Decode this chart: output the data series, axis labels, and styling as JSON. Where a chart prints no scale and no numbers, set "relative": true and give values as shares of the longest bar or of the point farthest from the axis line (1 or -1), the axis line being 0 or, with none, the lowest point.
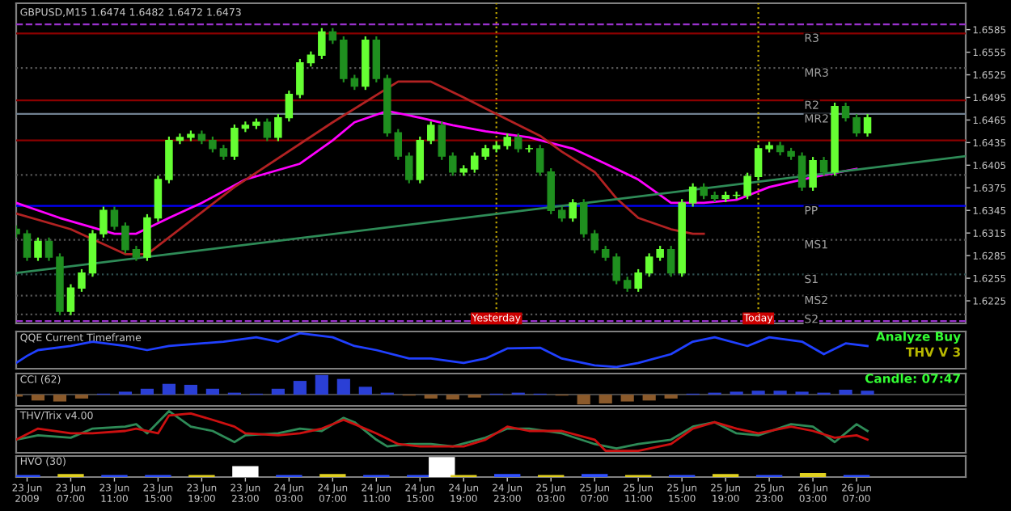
{
  "chart_data": [
    {
      "type": "candlestick",
      "title": "GBPUSD,M15 1.6474 1.6482 1.6472 1.6473",
      "colors": [
        "#1f8f1f",
        "#1f8f1f",
        "#66ff33",
        "#1f8f1f",
        "#1f8f1f",
        "#66ff33",
        "#66ff33",
        "#66ff33",
        "#66ff33",
        "#1f8f1f",
        "#1f8f1f",
        "#1f8f1f",
        "#66ff33",
        "#66ff33",
        "#66ff33",
        "#66ff33",
        "#66ff33",
        "#1f8f1f",
        "#1f8f1f",
        "#1f8f1f",
        "#66ff33",
        "#66ff33",
        "#66ff33",
        "#1f8f1f",
        "#66ff33",
        "#66ff33",
        "#66ff33",
        "#66ff33",
        "#66ff33",
        "#1f8f1f",
        "#1f8f1f",
        "#1f8f1f",
        "#66ff33",
        "#1f8f1f",
        "#1f8f1f",
        "#1f8f1f",
        "#1f8f1f",
        "#66ff33",
        "#66ff33",
        "#1f8f1f",
        "#1f8f1f",
        "#66ff33",
        "#66ff33",
        "#66ff33",
        "#66ff33",
        "#66ff33",
        "#1f8f1f",
        "#66ff33",
        "#1f8f1f",
        "#1f8f1f",
        "#1f8f1f",
        "#66ff33",
        "#1f8f1f",
        "#1f8f1f",
        "#1f8f1f",
        "#1f8f1f",
        "#1f8f1f",
        "#66ff33",
        "#66ff33",
        "#66ff33",
        "#1f8f1f",
        "#66ff33",
        "#66ff33",
        "#1f8f1f",
        "#1f8f1f",
        "#66ff33",
        "#66ff33",
        "#66ff33",
        "#66ff33",
        "#66ff33",
        "#1f8f1f",
        "#1f8f1f",
        "#1f8f1f",
        "#66ff33",
        "#1f8f1f",
        "#66ff33",
        "#1f8f1f",
        "#1f8f1f",
        "#66ff33"
      ],
      "x": [
        "2009-06-23T02:00",
        "2009-06-23T03:00",
        "2009-06-23T04:00",
        "2009-06-23T05:00",
        "2009-06-23T06:00",
        "2009-06-23T07:00",
        "2009-06-23T08:00",
        "2009-06-23T09:00",
        "2009-06-23T10:00",
        "2009-06-23T11:00",
        "2009-06-23T12:00",
        "2009-06-23T13:00",
        "2009-06-23T14:00",
        "2009-06-23T15:00",
        "2009-06-23T16:00",
        "2009-06-23T17:00",
        "2009-06-23T18:00",
        "2009-06-23T19:00",
        "2009-06-23T20:00",
        "2009-06-23T21:00",
        "2009-06-23T22:00",
        "2009-06-23T23:00",
        "2009-06-24T00:00",
        "2009-06-24T01:00",
        "2009-06-24T02:00",
        "2009-06-24T03:00",
        "2009-06-24T04:00",
        "2009-06-24T05:00",
        "2009-06-24T06:00",
        "2009-06-24T07:00",
        "2009-06-24T08:00",
        "2009-06-24T09:00",
        "2009-06-24T10:00",
        "2009-06-24T11:00",
        "2009-06-24T12:00",
        "2009-06-24T13:00",
        "2009-06-24T14:00",
        "2009-06-24T15:00",
        "2009-06-24T16:00",
        "2009-06-24T17:00",
        "2009-06-24T18:00",
        "2009-06-24T19:00",
        "2009-06-24T20:00",
        "2009-06-24T21:00",
        "2009-06-24T22:00",
        "2009-06-24T23:00",
        "2009-06-25T00:00",
        "2009-06-25T01:00",
        "2009-06-25T02:00",
        "2009-06-25T03:00",
        "2009-06-25T04:00",
        "2009-06-25T05:00",
        "2009-06-25T06:00",
        "2009-06-25T07:00",
        "2009-06-25T08:00",
        "2009-06-25T09:00",
        "2009-06-25T10:00",
        "2009-06-25T11:00",
        "2009-06-25T12:00",
        "2009-06-25T13:00",
        "2009-06-25T14:00",
        "2009-06-25T15:00",
        "2009-06-25T16:00",
        "2009-06-25T17:00",
        "2009-06-25T18:00",
        "2009-06-25T19:00",
        "2009-06-25T20:00",
        "2009-06-25T21:00",
        "2009-06-25T22:00",
        "2009-06-25T23:00",
        "2009-06-26T00:00",
        "2009-06-26T01:00",
        "2009-06-26T02:00",
        "2009-06-26T03:00",
        "2009-06-26T04:00",
        "2009-06-26T05:00",
        "2009-06-26T06:00",
        "2009-06-26T07:00",
        "2009-06-26T08:00"
      ],
      "ohlc": [
        [
          1.632,
          1.6325,
          1.6309,
          1.6314
        ],
        [
          1.6314,
          1.6319,
          1.6278,
          1.6283
        ],
        [
          1.6283,
          1.6309,
          1.6278,
          1.6304
        ],
        [
          1.6304,
          1.6309,
          1.6278,
          1.6283
        ],
        [
          1.6283,
          1.6288,
          1.6206,
          1.6211
        ],
        [
          1.6211,
          1.6247,
          1.6206,
          1.6242
        ],
        [
          1.6242,
          1.6267,
          1.6237,
          1.6262
        ],
        [
          1.6262,
          1.6319,
          1.6257,
          1.6314
        ],
        [
          1.6314,
          1.635,
          1.6309,
          1.6345
        ],
        [
          1.6345,
          1.635,
          1.6319,
          1.6324
        ],
        [
          1.6324,
          1.6329,
          1.6288,
          1.6293
        ],
        [
          1.6293,
          1.6298,
          1.6278,
          1.6283
        ],
        [
          1.6283,
          1.634,
          1.6278,
          1.6335
        ],
        [
          1.6335,
          1.6391,
          1.633,
          1.6386
        ],
        [
          1.6386,
          1.6443,
          1.6381,
          1.6438
        ],
        [
          1.6438,
          1.6447,
          1.6433,
          1.6442
        ],
        [
          1.6442,
          1.6451,
          1.6437,
          1.6446
        ],
        [
          1.6446,
          1.6451,
          1.6433,
          1.6438
        ],
        [
          1.6438,
          1.6443,
          1.6422,
          1.6427
        ],
        [
          1.6427,
          1.6432,
          1.6412,
          1.6417
        ],
        [
          1.6417,
          1.6459,
          1.6412,
          1.6454
        ],
        [
          1.6454,
          1.6463,
          1.6449,
          1.6458
        ],
        [
          1.6458,
          1.6467,
          1.6453,
          1.6462
        ],
        [
          1.6462,
          1.6467,
          1.6437,
          1.6442
        ],
        [
          1.6442,
          1.6473,
          1.6437,
          1.6468
        ],
        [
          1.6468,
          1.6504,
          1.6463,
          1.6499
        ],
        [
          1.6499,
          1.6546,
          1.6494,
          1.6541
        ],
        [
          1.6541,
          1.6556,
          1.6536,
          1.6551
        ],
        [
          1.6551,
          1.6587,
          1.6546,
          1.6582
        ],
        [
          1.6582,
          1.6587,
          1.6566,
          1.6571
        ],
        [
          1.6571,
          1.6576,
          1.6515,
          1.652
        ],
        [
          1.652,
          1.6525,
          1.6505,
          1.651
        ],
        [
          1.651,
          1.6576,
          1.6505,
          1.6571
        ],
        [
          1.6571,
          1.6576,
          1.6515,
          1.652
        ],
        [
          1.652,
          1.6525,
          1.6443,
          1.6448
        ],
        [
          1.6448,
          1.6453,
          1.6412,
          1.6417
        ],
        [
          1.6417,
          1.6422,
          1.6381,
          1.6386
        ],
        [
          1.6386,
          1.6443,
          1.6381,
          1.6438
        ],
        [
          1.6438,
          1.6463,
          1.6433,
          1.6458
        ],
        [
          1.6458,
          1.6463,
          1.6412,
          1.6417
        ],
        [
          1.6417,
          1.6422,
          1.6391,
          1.6396
        ],
        [
          1.6396,
          1.6405,
          1.6391,
          1.64
        ],
        [
          1.64,
          1.6422,
          1.6395,
          1.6417
        ],
        [
          1.6417,
          1.6432,
          1.6412,
          1.6427
        ],
        [
          1.6427,
          1.6436,
          1.6422,
          1.6431
        ],
        [
          1.6431,
          1.6447,
          1.6426,
          1.6442
        ],
        [
          1.6442,
          1.6447,
          1.6422,
          1.6427
        ],
        [
          1.6427,
          1.6432,
          1.6422,
          1.6427
        ],
        [
          1.6427,
          1.6432,
          1.6391,
          1.6396
        ],
        [
          1.6396,
          1.6401,
          1.634,
          1.6345
        ],
        [
          1.6345,
          1.635,
          1.633,
          1.6335
        ],
        [
          1.6335,
          1.636,
          1.633,
          1.6355
        ],
        [
          1.6355,
          1.636,
          1.6309,
          1.6314
        ],
        [
          1.6314,
          1.6319,
          1.6288,
          1.6293
        ],
        [
          1.6293,
          1.6298,
          1.6278,
          1.6283
        ],
        [
          1.6283,
          1.6288,
          1.6247,
          1.6252
        ],
        [
          1.6252,
          1.6257,
          1.6237,
          1.6242
        ],
        [
          1.6242,
          1.6267,
          1.6237,
          1.6262
        ],
        [
          1.6262,
          1.6288,
          1.6257,
          1.6283
        ],
        [
          1.6283,
          1.6298,
          1.6278,
          1.6293
        ],
        [
          1.6293,
          1.6298,
          1.6257,
          1.6262
        ],
        [
          1.6262,
          1.636,
          1.6257,
          1.6355
        ],
        [
          1.6355,
          1.6381,
          1.635,
          1.6376
        ],
        [
          1.6376,
          1.6381,
          1.636,
          1.6365
        ],
        [
          1.6365,
          1.637,
          1.6356,
          1.6361
        ],
        [
          1.6361,
          1.637,
          1.6356,
          1.6365
        ],
        [
          1.6365,
          1.637,
          1.636,
          1.6365
        ],
        [
          1.6365,
          1.6395,
          1.636,
          1.639
        ],
        [
          1.639,
          1.6432,
          1.6385,
          1.6427
        ],
        [
          1.6427,
          1.6436,
          1.6422,
          1.6431
        ],
        [
          1.6431,
          1.6436,
          1.6418,
          1.6423
        ],
        [
          1.6423,
          1.6428,
          1.6412,
          1.6417
        ],
        [
          1.6417,
          1.6422,
          1.6371,
          1.6376
        ],
        [
          1.6376,
          1.6416,
          1.6371,
          1.6411
        ],
        [
          1.6411,
          1.6416,
          1.6391,
          1.6396
        ],
        [
          1.6396,
          1.6488,
          1.6391,
          1.6483
        ],
        [
          1.6483,
          1.6488,
          1.6463,
          1.6468
        ],
        [
          1.6468,
          1.6473,
          1.6443,
          1.6448
        ],
        [
          1.6448,
          1.6473,
          1.6443,
          1.6468
        ]
      ],
      "series": [
        {
          "type": "line",
          "color": "#ff00ff",
          "x": [
            "2009-06-23T02:00",
            "2009-06-23T06:00",
            "2009-06-23T11:00",
            "2009-06-23T13:00",
            "2009-06-23T16:00",
            "2009-06-23T19:00",
            "2009-06-23T23:00",
            "2009-06-24T04:00",
            "2009-06-24T07:00",
            "2009-06-24T09:00",
            "2009-06-24T12:00",
            "2009-06-24T15:00",
            "2009-06-24T18:00",
            "2009-06-24T21:00",
            "2009-06-25T01:00",
            "2009-06-25T05:00",
            "2009-06-25T08:00",
            "2009-06-25T11:00",
            "2009-06-25T14:00",
            "2009-06-25T17:00",
            "2009-06-25T20:00",
            "2009-06-25T23:00",
            "2009-06-26T02:00",
            "2009-06-26T04:00",
            "2009-06-26T07:00"
          ],
          "values": [
            1.6355,
            1.6335,
            1.6314,
            1.6314,
            1.6335,
            1.6355,
            1.6386,
            1.6407,
            1.6438,
            1.6462,
            1.6477,
            1.6468,
            1.6458,
            1.645,
            1.6442,
            1.6427,
            1.6407,
            1.6386,
            1.6355,
            1.6355,
            1.6359,
            1.6376,
            1.6386,
            1.6392,
            1.64
          ]
        },
        {
          "type": "line",
          "color": "#b22222",
          "x": [
            "2009-06-23T02:00",
            "2009-06-23T07:00",
            "2009-06-23T12:00",
            "2009-06-23T14:00",
            "2009-06-23T22:00",
            "2009-06-24T07:00",
            "2009-06-24T13:00",
            "2009-06-24T16:00",
            "2009-06-24T19:00",
            "2009-06-24T22:00",
            "2009-06-25T02:00",
            "2009-06-25T04:00",
            "2009-06-25T07:00",
            "2009-06-25T09:00",
            "2009-06-25T11:00",
            "2009-06-25T14:00",
            "2009-06-25T16:00",
            "2009-06-25T17:00"
          ],
          "values": [
            1.6341,
            1.632,
            1.6287,
            1.6287,
            1.6376,
            1.6462,
            1.6516,
            1.6516,
            1.6495,
            1.6473,
            1.6444,
            1.6423,
            1.6396,
            1.6361,
            1.6335,
            1.632,
            1.6314,
            1.6314
          ]
        },
        {
          "type": "line",
          "color": "#2e8b57",
          "x": [
            "2009-06-23T02:00",
            "2009-06-26T17:00"
          ],
          "values": [
            1.6262,
            1.6417
          ]
        }
      ],
      "ref_lines": [
        {
          "axis": "y",
          "value": 1.6592,
          "label": null,
          "color": "#9932cc",
          "line_style": "dashed"
        },
        {
          "axis": "y",
          "value": 1.658,
          "label": "R3",
          "color": "#8b0000",
          "line_style": "solid"
        },
        {
          "axis": "y",
          "value": 1.6534,
          "label": "MR3",
          "color": "#555555",
          "line_style": "dotted"
        },
        {
          "axis": "y",
          "value": 1.6491,
          "label": "R2",
          "color": "#8b0000",
          "line_style": "solid"
        },
        {
          "axis": "y",
          "value": 1.6473,
          "label": "MR2",
          "color": "#708090",
          "line_style": "solid"
        },
        {
          "axis": "y",
          "value": 1.6438,
          "label": null,
          "color": "#8b0000",
          "line_style": "solid"
        },
        {
          "axis": "y",
          "value": 1.6392,
          "label": null,
          "color": "#555555",
          "line_style": "dotted"
        },
        {
          "axis": "y",
          "value": 1.6351,
          "label": "PP",
          "color": "#0000ff",
          "line_style": "solid"
        },
        {
          "axis": "y",
          "value": 1.6306,
          "label": "MS1",
          "color": "#555555",
          "line_style": "dotted"
        },
        {
          "axis": "y",
          "value": 1.626,
          "label": "S1",
          "color": "#2f4f4f",
          "line_style": "dotted"
        },
        {
          "axis": "y",
          "value": 1.6232,
          "label": "MS2",
          "color": "#555555",
          "line_style": "dotted"
        },
        {
          "axis": "y",
          "value": 1.6207,
          "label": "S2",
          "color": "#555555",
          "line_style": "dotted"
        },
        {
          "axis": "y",
          "value": 1.6198,
          "label": null,
          "color": "#9932cc",
          "line_style": "dashed"
        },
        {
          "axis": "x",
          "value": "2009-06-24T22:00",
          "label": "Yesterday",
          "color": "#b8a000",
          "line_style": "dotted"
        },
        {
          "axis": "x",
          "value": "2009-06-25T22:00",
          "label": "Today",
          "color": "#b8a000",
          "line_style": "dotted"
        }
      ],
      "xlim": [
        "2009-06-23T02:00",
        "2009-06-26T17:00"
      ],
      "ylim": [
        1.6195,
        1.662
      ],
      "yticks": [
        1.6225,
        1.6255,
        1.6285,
        1.6315,
        1.6345,
        1.6375,
        1.6405,
        1.6435,
        1.6465,
        1.6495,
        1.6525,
        1.6555,
        1.6585
      ],
      "tick_labels": "y",
      "grid": false,
      "legend": false
    },
    {
      "type": "line",
      "relative": true,
      "annotations": [
        "QQE Current Timeframe",
        "Analyze Buy",
        "THV V 3"
      ],
      "xlim": [
        "2009-06-23T02:00",
        "2009-06-26T17:00"
      ],
      "tick_labels": false,
      "series": [
        {
          "color": "#2040ff",
          "x": [
            "2009-06-23T02:00",
            "2009-06-23T03:00",
            "2009-06-23T04:00",
            "2009-06-23T07:00",
            "2009-06-23T09:00",
            "2009-06-23T12:00",
            "2009-06-23T14:00",
            "2009-06-23T16:00",
            "2009-06-23T21:00",
            "2009-06-24T00:00",
            "2009-06-24T02:00",
            "2009-06-24T04:00",
            "2009-06-24T07:00",
            "2009-06-24T09:00",
            "2009-06-24T11:00",
            "2009-06-24T14:00",
            "2009-06-24T16:00",
            "2009-06-24T19:00",
            "2009-06-24T21:00",
            "2009-06-24T23:00",
            "2009-06-25T02:00",
            "2009-06-25T04:00",
            "2009-06-25T07:00",
            "2009-06-25T09:00",
            "2009-06-25T11:00",
            "2009-06-25T14:00",
            "2009-06-25T16:00",
            "2009-06-25T18:00",
            "2009-06-25T21:00",
            "2009-06-25T23:00",
            "2009-06-26T02:00",
            "2009-06-26T04:00",
            "2009-06-26T06:00",
            "2009-06-26T08:00"
          ],
          "values": [
            0.12,
            0.33,
            0.5,
            0.62,
            0.75,
            0.62,
            0.5,
            0.62,
            0.75,
            0.88,
            0.75,
            1,
            0.88,
            0.62,
            0.5,
            0.25,
            0.25,
            0.12,
            0.25,
            0.55,
            0.57,
            0.25,
            0.05,
            0,
            0.12,
            0.38,
            0.75,
            0.88,
            0.62,
            0.88,
            0.75,
            0.38,
            0.7,
            0.62
          ]
        }
      ]
    },
    {
      "type": "bar",
      "relative": true,
      "annotations": [
        "CCI (62)",
        "Candle: 07:47"
      ],
      "xlim": [
        "2009-06-23T02:00",
        "2009-06-26T17:00"
      ],
      "tick_labels": false,
      "x": [
        "2009-06-23T02:00",
        "2009-06-23T04:00",
        "2009-06-23T06:00",
        "2009-06-23T08:00",
        "2009-06-23T10:00",
        "2009-06-23T12:00",
        "2009-06-23T14:00",
        "2009-06-23T16:00",
        "2009-06-23T18:00",
        "2009-06-23T20:00",
        "2009-06-23T22:00",
        "2009-06-24T00:00",
        "2009-06-24T02:00",
        "2009-06-24T04:00",
        "2009-06-24T06:00",
        "2009-06-24T08:00",
        "2009-06-24T10:00",
        "2009-06-24T12:00",
        "2009-06-24T14:00",
        "2009-06-24T16:00",
        "2009-06-24T18:00",
        "2009-06-24T20:00",
        "2009-06-24T22:00",
        "2009-06-25T00:00",
        "2009-06-25T02:00",
        "2009-06-25T04:00",
        "2009-06-25T06:00",
        "2009-06-25T08:00",
        "2009-06-25T10:00",
        "2009-06-25T12:00",
        "2009-06-25T14:00",
        "2009-06-25T16:00",
        "2009-06-25T18:00",
        "2009-06-25T20:00",
        "2009-06-25T22:00",
        "2009-06-26T00:00",
        "2009-06-26T02:00",
        "2009-06-26T04:00",
        "2009-06-26T06:00",
        "2009-06-26T08:00"
      ],
      "values": [
        -0.1,
        -0.3,
        -0.35,
        -0.2,
        0.05,
        0.15,
        0.3,
        0.55,
        0.5,
        0.3,
        0.1,
        0.05,
        0.3,
        0.7,
        1,
        0.8,
        0.4,
        0.1,
        -0.05,
        -0.2,
        -0.25,
        -0.15,
        0.05,
        0.1,
        0.05,
        -0.05,
        -0.5,
        -0.45,
        -0.35,
        -0.3,
        -0.2,
        0.05,
        0.1,
        0.15,
        0.2,
        0.2,
        0.15,
        0.1,
        0.25,
        0.2
      ],
      "colors": [
        "#8b5a2b",
        "#8b5a2b",
        "#8b5a2b",
        "#8b5a2b",
        "#2a3fd6",
        "#2a3fd6",
        "#2a3fd6",
        "#2a3fd6",
        "#2a3fd6",
        "#2a3fd6",
        "#2a3fd6",
        "#2a3fd6",
        "#2a3fd6",
        "#2a3fd6",
        "#2a3fd6",
        "#2a3fd6",
        "#2a3fd6",
        "#2a3fd6",
        "#8b5a2b",
        "#8b5a2b",
        "#8b5a2b",
        "#8b5a2b",
        "#2a3fd6",
        "#2a3fd6",
        "#2a3fd6",
        "#8b5a2b",
        "#8b5a2b",
        "#8b5a2b",
        "#8b5a2b",
        "#8b5a2b",
        "#8b5a2b",
        "#2a3fd6",
        "#2a3fd6",
        "#2a3fd6",
        "#2a3fd6",
        "#2a3fd6",
        "#2a3fd6",
        "#2a3fd6",
        "#2a3fd6",
        "#2a3fd6"
      ]
    },
    {
      "type": "line",
      "relative": true,
      "annotations": [
        "THV/Trix v4.00"
      ],
      "xlim": [
        "2009-06-23T02:00",
        "2009-06-26T17:00"
      ],
      "tick_labels": false,
      "series": [
        {
          "color": "#2e8b57",
          "x": [
            "2009-06-23T02:00",
            "2009-06-23T04:00",
            "2009-06-23T07:00",
            "2009-06-23T09:00",
            "2009-06-23T12:00",
            "2009-06-23T13:00",
            "2009-06-23T14:00",
            "2009-06-23T16:00",
            "2009-06-23T18:00",
            "2009-06-23T20:00",
            "2009-06-23T22:00",
            "2009-06-23T23:00",
            "2009-06-24T02:00",
            "2009-06-24T04:00",
            "2009-06-24T06:00",
            "2009-06-24T08:00",
            "2009-06-24T09:00",
            "2009-06-24T11:00",
            "2009-06-24T12:00",
            "2009-06-24T14:00",
            "2009-06-24T16:00",
            "2009-06-24T18:00",
            "2009-06-24T21:00",
            "2009-06-24T23:00",
            "2009-06-25T01:00",
            "2009-06-25T04:00",
            "2009-06-25T07:00",
            "2009-06-25T09:00",
            "2009-06-25T11:00",
            "2009-06-25T14:00",
            "2009-06-25T16:00",
            "2009-06-25T18:00",
            "2009-06-25T20:00",
            "2009-06-25T22:00",
            "2009-06-26T01:00",
            "2009-06-26T03:00",
            "2009-06-26T05:00",
            "2009-06-26T07:00",
            "2009-06-26T08:00"
          ],
          "values": [
            0.28,
            0.39,
            0.33,
            0.56,
            0.61,
            0.67,
            0.44,
            1,
            0.61,
            0.5,
            0.22,
            0.39,
            0.44,
            0.56,
            0.5,
            0.83,
            0.72,
            0.28,
            0.11,
            0.17,
            0.17,
            0.11,
            0.33,
            0.56,
            0.56,
            0.44,
            0.17,
            0.06,
            0.17,
            0.28,
            0.61,
            0.72,
            0.44,
            0.39,
            0.67,
            0.61,
            0.22,
            0.67,
            0.5
          ]
        },
        {
          "color": "#cc1010",
          "x": [
            "2009-06-23T02:00",
            "2009-06-23T04:00",
            "2009-06-23T07:00",
            "2009-06-23T09:00",
            "2009-06-23T12:00",
            "2009-06-23T13:00",
            "2009-06-23T15:00",
            "2009-06-23T16:00",
            "2009-06-23T18:00",
            "2009-06-23T20:00",
            "2009-06-23T22:00",
            "2009-06-23T23:00",
            "2009-06-24T02:00",
            "2009-06-24T04:00",
            "2009-06-24T06:00",
            "2009-06-24T08:00",
            "2009-06-24T09:00",
            "2009-06-24T11:00",
            "2009-06-24T13:00",
            "2009-06-24T15:00",
            "2009-06-24T17:00",
            "2009-06-24T19:00",
            "2009-06-24T21:00",
            "2009-06-24T23:00",
            "2009-06-25T01:00",
            "2009-06-25T04:00",
            "2009-06-25T07:00",
            "2009-06-25T08:00",
            "2009-06-25T11:00",
            "2009-06-25T14:00",
            "2009-06-25T16:00",
            "2009-06-25T18:00",
            "2009-06-25T20:00",
            "2009-06-25T22:00",
            "2009-06-26T01:00",
            "2009-06-26T03:00",
            "2009-06-26T05:00",
            "2009-06-26T07:00",
            "2009-06-26T08:00"
          ],
          "values": [
            0.28,
            0.56,
            0.44,
            0.44,
            0.5,
            0.56,
            0.44,
            0.89,
            0.94,
            0.78,
            0.61,
            0.44,
            0.39,
            0.44,
            0.56,
            0.78,
            0.67,
            0.44,
            0.17,
            0.11,
            0.11,
            0.11,
            0.28,
            0.61,
            0.5,
            0.5,
            0.28,
            0,
            0,
            0.17,
            0.56,
            0.72,
            0.56,
            0.44,
            0.61,
            0.5,
            0.33,
            0.39,
            0.28
          ]
        }
      ]
    },
    {
      "type": "bar",
      "relative": true,
      "annotations": [
        "HVO (30)"
      ],
      "xlim": [
        "2009-06-23T02:00",
        "2009-06-26T17:00"
      ],
      "tick_labels": "x",
      "xticks": [
        {
          "value": "2009-06-23T03:00",
          "label": "23 Jun 2009"
        },
        {
          "value": "2009-06-23T07:00",
          "label": "23 Jun 07:00"
        },
        {
          "value": "2009-06-23T11:00",
          "label": "23 Jun 11:00"
        },
        {
          "value": "2009-06-23T15:00",
          "label": "23 Jun 15:00"
        },
        {
          "value": "2009-06-23T19:00",
          "label": "23 Jun 19:00"
        },
        {
          "value": "2009-06-23T23:00",
          "label": "23 Jun 23:00"
        },
        {
          "value": "2009-06-24T03:00",
          "label": "24 Jun 03:00"
        },
        {
          "value": "2009-06-24T07:00",
          "label": "24 Jun 07:00"
        },
        {
          "value": "2009-06-24T11:00",
          "label": "24 Jun 11:00"
        },
        {
          "value": "2009-06-24T15:00",
          "label": "24 Jun 15:00"
        },
        {
          "value": "2009-06-24T19:00",
          "label": "24 Jun 19:00"
        },
        {
          "value": "2009-06-24T23:00",
          "label": "24 Jun 23:00"
        },
        {
          "value": "2009-06-25T03:00",
          "label": "25 Jun 03:00"
        },
        {
          "value": "2009-06-25T07:00",
          "label": "25 Jun 07:00"
        },
        {
          "value": "2009-06-25T11:00",
          "label": "25 Jun 11:00"
        },
        {
          "value": "2009-06-25T15:00",
          "label": "25 Jun 15:00"
        },
        {
          "value": "2009-06-25T19:00",
          "label": "25 Jun 19:00"
        },
        {
          "value": "2009-06-25T23:00",
          "label": "25 Jun 23:00"
        },
        {
          "value": "2009-06-26T03:00",
          "label": "26 Jun 03:00"
        },
        {
          "value": "2009-06-26T07:00",
          "label": "26 Jun 07:00"
        }
      ],
      "x": [
        "2009-06-23T03:00",
        "2009-06-23T07:00",
        "2009-06-23T11:00",
        "2009-06-23T15:00",
        "2009-06-23T19:00",
        "2009-06-23T23:00",
        "2009-06-24T03:00",
        "2009-06-24T07:00",
        "2009-06-24T11:00",
        "2009-06-24T15:00",
        "2009-06-24T17:00",
        "2009-06-24T19:00",
        "2009-06-24T23:00",
        "2009-06-25T03:00",
        "2009-06-25T07:00",
        "2009-06-25T11:00",
        "2009-06-25T15:00",
        "2009-06-25T19:00",
        "2009-06-25T23:00",
        "2009-06-26T03:00",
        "2009-06-26T07:00"
      ],
      "values": [
        0.1,
        0.15,
        0.1,
        0.1,
        0.1,
        0.55,
        0.1,
        0.15,
        0.1,
        0.1,
        1,
        0.1,
        0.15,
        0.1,
        0.15,
        0.1,
        0.1,
        0.15,
        0.1,
        0.2,
        0.1
      ],
      "colors": [
        "#3050ff",
        "#e0d020",
        "#3050ff",
        "#3050ff",
        "#e0d020",
        "#ffffff",
        "#3050ff",
        "#e0d020",
        "#3050ff",
        "#3050ff",
        "#ffffff",
        "#e0d020",
        "#3050ff",
        "#e0d020",
        "#3050ff",
        "#e0d020",
        "#3050ff",
        "#e0d020",
        "#3050ff",
        "#e0d020",
        "#3050ff"
      ]
    }
  ]
}
